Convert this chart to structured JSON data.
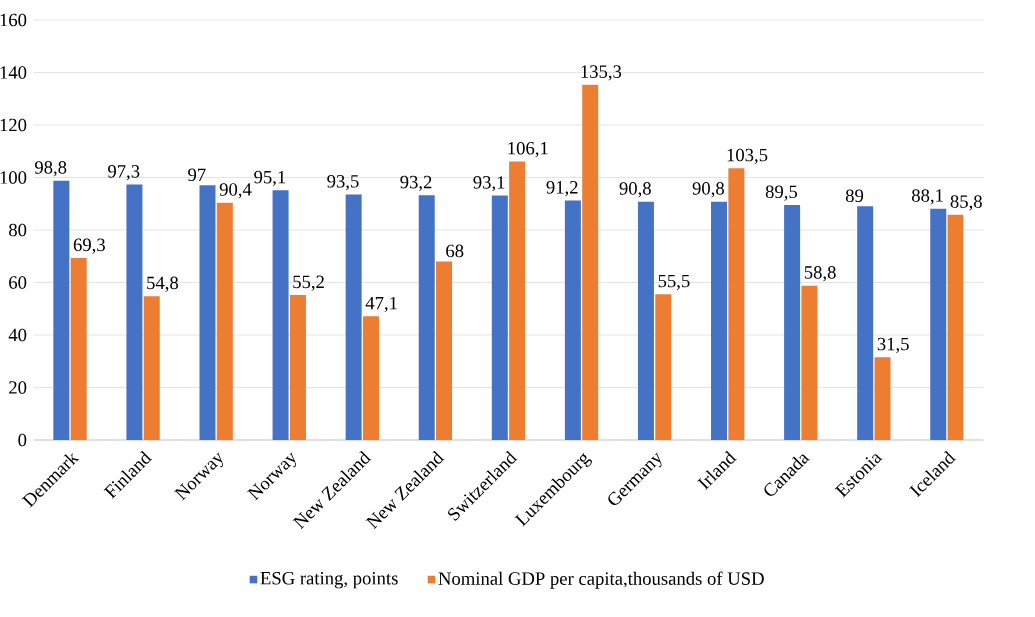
{
  "chart_data": {
    "type": "bar",
    "categories": [
      "Denmark",
      "Finland",
      "Norway",
      "Norway",
      "New Zealand",
      "New Zealand",
      "Switzerland",
      "Luxembourg",
      "Germany",
      "Irland",
      "Canada",
      "Estonia",
      "Iceland"
    ],
    "series": [
      {
        "name": "ESG rating, points",
        "color": "#4472c4",
        "values": [
          98.8,
          97.3,
          97,
          95.1,
          93.5,
          93.2,
          93.1,
          91.2,
          90.8,
          90.8,
          89.5,
          89,
          88.1
        ],
        "value_labels": [
          "98,8",
          "97,3",
          "97",
          "95,1",
          "93,5",
          "93,2",
          "93,1",
          "91,2",
          "90,8",
          "90,8",
          "89,5",
          "89",
          "88,1"
        ]
      },
      {
        "name": "Nominal GDP per capita,thousands of USD",
        "color": "#ed7d31",
        "values": [
          69.3,
          54.8,
          90.4,
          55.2,
          47.1,
          68,
          106.1,
          135.3,
          55.5,
          103.5,
          58.8,
          31.5,
          85.8
        ],
        "value_labels": [
          "69,3",
          "54,8",
          "90,4",
          "55,2",
          "47,1",
          "68",
          "106,1",
          "135,3",
          "55,5",
          "103,5",
          "58,8",
          "31,5",
          "85,8"
        ]
      }
    ],
    "ylim": [
      0,
      160
    ],
    "yticks": [
      0,
      20,
      40,
      60,
      80,
      100,
      120,
      140,
      160
    ],
    "grid": "y",
    "legend": "bottom"
  }
}
